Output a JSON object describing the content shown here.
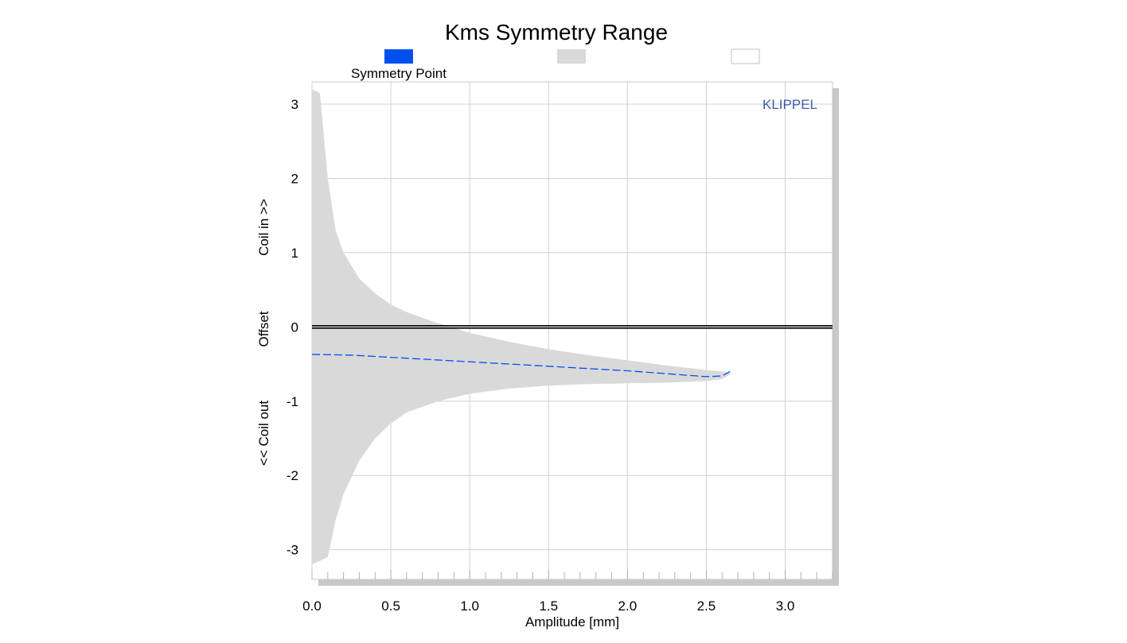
{
  "chart_data": {
    "type": "area",
    "title": "Kms Symmetry Range",
    "xlabel": "Amplitude [mm]",
    "ylabel_segments": [
      "<< Coil out",
      "Offset",
      "Coil in >>"
    ],
    "watermark": "KLIPPEL",
    "xlim": [
      0.0,
      3.3
    ],
    "ylim": [
      -3.4,
      3.3
    ],
    "x_ticks": [
      0.0,
      0.5,
      1.0,
      1.5,
      2.0,
      2.5,
      3.0
    ],
    "x_tick_labels": [
      "0.0",
      "0.5",
      "1.0",
      "1.5",
      "2.0",
      "2.5",
      "3.0"
    ],
    "y_ticks": [
      3,
      2,
      1,
      0,
      -1,
      -2,
      -3
    ],
    "y_tick_labels": [
      "3",
      "2",
      "1",
      "0",
      "-1",
      "-2",
      "-3"
    ],
    "grid": true,
    "legend": [
      {
        "label": "Symmetry Point",
        "color": "#0050f0"
      },
      {
        "label": "",
        "color": "#d9d9d9"
      },
      {
        "label": "",
        "color": "#ffffff"
      }
    ],
    "series": [
      {
        "name": "Symmetry Point",
        "style": "dashed",
        "color": "#0050f0",
        "x": [
          0.0,
          0.25,
          0.5,
          0.75,
          1.0,
          1.25,
          1.5,
          1.75,
          2.0,
          2.25,
          2.5,
          2.6,
          2.65
        ],
        "y": [
          -0.37,
          -0.38,
          -0.41,
          -0.44,
          -0.47,
          -0.5,
          -0.53,
          -0.56,
          -0.59,
          -0.63,
          -0.67,
          -0.66,
          -0.6
        ]
      }
    ],
    "range_band": {
      "color": "#d9d9d9",
      "x": [
        0.0,
        0.05,
        0.1,
        0.15,
        0.2,
        0.3,
        0.4,
        0.5,
        0.6,
        0.8,
        1.0,
        1.25,
        1.5,
        1.75,
        2.0,
        2.25,
        2.5,
        2.6,
        2.65
      ],
      "upper": [
        3.2,
        3.15,
        2.0,
        1.3,
        1.0,
        0.65,
        0.45,
        0.3,
        0.2,
        0.05,
        -0.08,
        -0.2,
        -0.3,
        -0.38,
        -0.45,
        -0.52,
        -0.58,
        -0.6,
        -0.62
      ],
      "lower": [
        -3.2,
        -3.15,
        -3.1,
        -2.6,
        -2.25,
        -1.8,
        -1.5,
        -1.3,
        -1.15,
        -1.0,
        -0.9,
        -0.83,
        -0.79,
        -0.77,
        -0.76,
        -0.75,
        -0.73,
        -0.7,
        -0.64
      ]
    },
    "zero_line": 0
  }
}
